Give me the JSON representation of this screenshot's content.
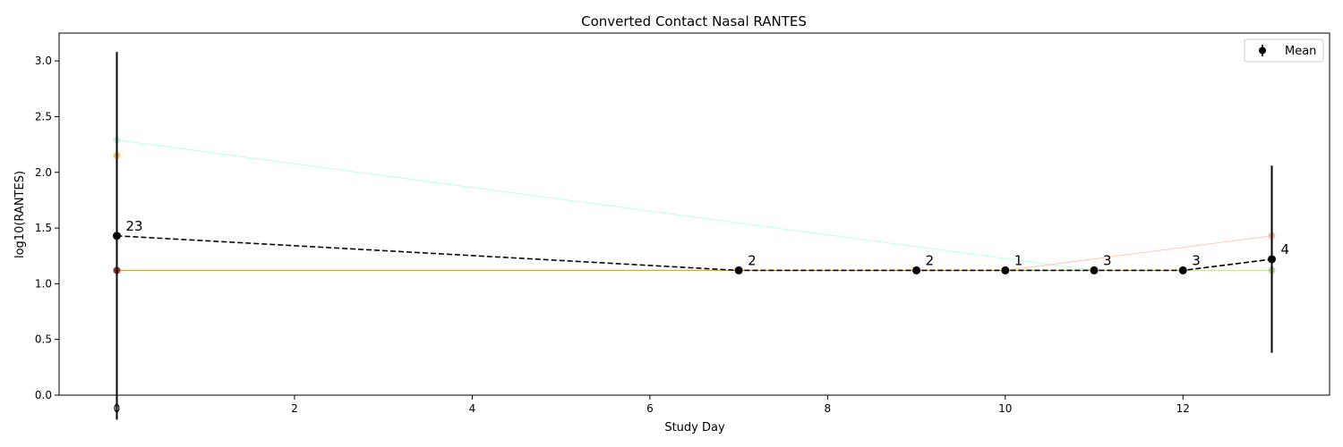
{
  "chart_data": {
    "type": "line",
    "title": "Converted Contact Nasal RANTES",
    "xlabel": "Study Day",
    "ylabel": "log10(RANTES)",
    "xlim": [
      -0.65,
      13.65
    ],
    "ylim": [
      0.0,
      3.25
    ],
    "xticks": [
      0,
      2,
      4,
      6,
      8,
      10,
      12
    ],
    "yticks": [
      0.0,
      0.5,
      1.0,
      1.5,
      2.0,
      2.5,
      3.0
    ],
    "grid": false,
    "legend": {
      "position": "top-right",
      "entries": [
        "Mean"
      ]
    },
    "subjects": [
      {
        "color": "#7fffd4",
        "x": [
          0,
          11
        ],
        "y": [
          2.29,
          1.12
        ]
      },
      {
        "color": "#ffa07a",
        "x": [
          0,
          10,
          13
        ],
        "y": [
          1.12,
          1.12,
          1.43
        ]
      },
      {
        "color": "#9acd32",
        "x": [
          0,
          12,
          13
        ],
        "y": [
          1.12,
          1.12,
          1.12
        ]
      },
      {
        "color": "#b8860b",
        "x": [
          0,
          12
        ],
        "y": [
          1.12,
          1.12
        ]
      },
      {
        "color": "#ffa500",
        "x": [
          0
        ],
        "y": [
          2.15
        ]
      },
      {
        "color": "#8b0000",
        "x": [
          0
        ],
        "y": [
          1.12
        ]
      }
    ],
    "mean": {
      "name": "Mean",
      "color": "#000000",
      "x": [
        0,
        7,
        9,
        10,
        11,
        12,
        13
      ],
      "y": [
        1.43,
        1.12,
        1.12,
        1.12,
        1.12,
        1.12,
        1.22
      ],
      "err": [
        1.65,
        0,
        0,
        0,
        0,
        0,
        0.84
      ],
      "n": [
        "23",
        "2",
        "2",
        "1",
        "3",
        "3",
        "4"
      ]
    }
  }
}
